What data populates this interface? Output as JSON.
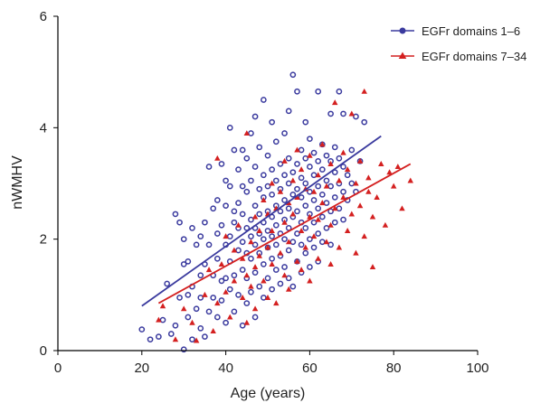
{
  "chart_data": {
    "type": "scatter",
    "title": "",
    "xlabel": "Age (years)",
    "ylabel": "nWMHV",
    "xlim": [
      0,
      100
    ],
    "ylim": [
      0,
      6
    ],
    "xticks": [
      0,
      20,
      40,
      60,
      80,
      100
    ],
    "yticks": [
      0,
      2,
      4,
      6
    ],
    "grid": false,
    "legend_position": "top-right",
    "series": [
      {
        "name": "EGFr domains 1–6",
        "color": "#3a3a9e",
        "marker": "circle",
        "trend": {
          "x": [
            20,
            77
          ],
          "y": [
            0.8,
            3.85
          ]
        },
        "points": [
          [
            20,
            0.38
          ],
          [
            22,
            0.2
          ],
          [
            24,
            0.25
          ],
          [
            25,
            0.55
          ],
          [
            26,
            1.2
          ],
          [
            27,
            0.3
          ],
          [
            28,
            0.45
          ],
          [
            28,
            2.45
          ],
          [
            29,
            0.95
          ],
          [
            29,
            2.3
          ],
          [
            30,
            0.02
          ],
          [
            30,
            1.55
          ],
          [
            30,
            2.0
          ],
          [
            31,
            0.6
          ],
          [
            31,
            1.0
          ],
          [
            31,
            1.6
          ],
          [
            32,
            0.2
          ],
          [
            32,
            1.15
          ],
          [
            32,
            2.2
          ],
          [
            33,
            0.75
          ],
          [
            33,
            1.9
          ],
          [
            34,
            0.4
          ],
          [
            34,
            0.95
          ],
          [
            34,
            1.35
          ],
          [
            34,
            2.05
          ],
          [
            35,
            0.25
          ],
          [
            35,
            1.55
          ],
          [
            35,
            2.3
          ],
          [
            36,
            0.7
          ],
          [
            36,
            1.9
          ],
          [
            36,
            3.3
          ],
          [
            37,
            0.95
          ],
          [
            37,
            1.35
          ],
          [
            37,
            2.55
          ],
          [
            38,
            0.6
          ],
          [
            38,
            1.65
          ],
          [
            38,
            2.1
          ],
          [
            38,
            2.7
          ],
          [
            39,
            0.9
          ],
          [
            39,
            1.25
          ],
          [
            39,
            2.25
          ],
          [
            39,
            3.35
          ],
          [
            40,
            0.5
          ],
          [
            40,
            1.3
          ],
          [
            40,
            1.9
          ],
          [
            40,
            2.6
          ],
          [
            40,
            3.05
          ],
          [
            41,
            1.1
          ],
          [
            41,
            1.6
          ],
          [
            41,
            2.05
          ],
          [
            41,
            2.95
          ],
          [
            41,
            4.0
          ],
          [
            42,
            0.7
          ],
          [
            42,
            1.35
          ],
          [
            42,
            2.3
          ],
          [
            42,
            2.5
          ],
          [
            42,
            3.6
          ],
          [
            43,
            1.0
          ],
          [
            43,
            1.8
          ],
          [
            43,
            2.2
          ],
          [
            43,
            2.65
          ],
          [
            43,
            3.25
          ],
          [
            44,
            0.45
          ],
          [
            44,
            1.45
          ],
          [
            44,
            1.95
          ],
          [
            44,
            2.45
          ],
          [
            44,
            2.95
          ],
          [
            44,
            3.6
          ],
          [
            45,
            0.85
          ],
          [
            45,
            1.3
          ],
          [
            45,
            1.75
          ],
          [
            45,
            2.2
          ],
          [
            45,
            2.85
          ],
          [
            45,
            3.45
          ],
          [
            46,
            1.05
          ],
          [
            46,
            1.65
          ],
          [
            46,
            2.05
          ],
          [
            46,
            2.35
          ],
          [
            46,
            3.05
          ],
          [
            46,
            3.9
          ],
          [
            47,
            0.6
          ],
          [
            47,
            1.4
          ],
          [
            47,
            1.9
          ],
          [
            47,
            2.2
          ],
          [
            47,
            2.6
          ],
          [
            47,
            3.3
          ],
          [
            47,
            4.2
          ],
          [
            48,
            1.15
          ],
          [
            48,
            1.75
          ],
          [
            48,
            2.1
          ],
          [
            48,
            2.45
          ],
          [
            48,
            2.9
          ],
          [
            48,
            3.65
          ],
          [
            49,
            0.95
          ],
          [
            49,
            1.55
          ],
          [
            49,
            2.0
          ],
          [
            49,
            2.3
          ],
          [
            49,
            2.75
          ],
          [
            49,
            3.15
          ],
          [
            49,
            4.5
          ],
          [
            50,
            1.3
          ],
          [
            50,
            1.85
          ],
          [
            50,
            2.15
          ],
          [
            50,
            2.5
          ],
          [
            50,
            2.95
          ],
          [
            50,
            3.5
          ],
          [
            51,
            1.1
          ],
          [
            51,
            1.65
          ],
          [
            51,
            2.05
          ],
          [
            51,
            2.4
          ],
          [
            51,
            2.8
          ],
          [
            51,
            3.25
          ],
          [
            51,
            4.1
          ],
          [
            52,
            1.45
          ],
          [
            52,
            1.9
          ],
          [
            52,
            2.25
          ],
          [
            52,
            2.6
          ],
          [
            52,
            3.05
          ],
          [
            52,
            3.75
          ],
          [
            53,
            1.2
          ],
          [
            53,
            1.7
          ],
          [
            53,
            2.1
          ],
          [
            53,
            2.5
          ],
          [
            53,
            2.9
          ],
          [
            53,
            3.35
          ],
          [
            54,
            1.5
          ],
          [
            54,
            2.0
          ],
          [
            54,
            2.35
          ],
          [
            54,
            2.7
          ],
          [
            54,
            3.15
          ],
          [
            54,
            3.9
          ],
          [
            55,
            1.3
          ],
          [
            55,
            1.8
          ],
          [
            55,
            2.2
          ],
          [
            55,
            2.55
          ],
          [
            55,
            3.0
          ],
          [
            55,
            3.45
          ],
          [
            55,
            4.3
          ],
          [
            56,
            1.15
          ],
          [
            56,
            1.95
          ],
          [
            56,
            2.4
          ],
          [
            56,
            2.8
          ],
          [
            56,
            3.2
          ],
          [
            56,
            4.95
          ],
          [
            57,
            1.6
          ],
          [
            57,
            2.1
          ],
          [
            57,
            2.5
          ],
          [
            57,
            2.9
          ],
          [
            57,
            3.35
          ],
          [
            57,
            4.65
          ],
          [
            58,
            1.4
          ],
          [
            58,
            1.9
          ],
          [
            58,
            2.3
          ],
          [
            58,
            2.75
          ],
          [
            58,
            3.1
          ],
          [
            58,
            3.6
          ],
          [
            59,
            1.75
          ],
          [
            59,
            2.2
          ],
          [
            59,
            2.6
          ],
          [
            59,
            3.0
          ],
          [
            59,
            3.45
          ],
          [
            59,
            4.1
          ],
          [
            60,
            1.5
          ],
          [
            60,
            2.0
          ],
          [
            60,
            2.45
          ],
          [
            60,
            2.85
          ],
          [
            60,
            3.3
          ],
          [
            60,
            3.8
          ],
          [
            61,
            1.85
          ],
          [
            61,
            2.3
          ],
          [
            61,
            2.7
          ],
          [
            61,
            3.15
          ],
          [
            61,
            3.55
          ],
          [
            62,
            1.6
          ],
          [
            62,
            2.1
          ],
          [
            62,
            2.55
          ],
          [
            62,
            2.95
          ],
          [
            62,
            3.4
          ],
          [
            62,
            4.65
          ],
          [
            63,
            1.95
          ],
          [
            63,
            2.4
          ],
          [
            63,
            2.8
          ],
          [
            63,
            3.25
          ],
          [
            63,
            3.7
          ],
          [
            64,
            2.2
          ],
          [
            64,
            2.65
          ],
          [
            64,
            3.05
          ],
          [
            64,
            3.5
          ],
          [
            65,
            1.9
          ],
          [
            65,
            2.5
          ],
          [
            65,
            2.95
          ],
          [
            65,
            3.4
          ],
          [
            65,
            4.25
          ],
          [
            66,
            2.3
          ],
          [
            66,
            2.75
          ],
          [
            66,
            3.2
          ],
          [
            66,
            3.65
          ],
          [
            67,
            2.55
          ],
          [
            67,
            3.0
          ],
          [
            67,
            3.45
          ],
          [
            67,
            4.65
          ],
          [
            68,
            2.35
          ],
          [
            68,
            2.85
          ],
          [
            68,
            3.3
          ],
          [
            68,
            4.25
          ],
          [
            69,
            2.7
          ],
          [
            69,
            3.15
          ],
          [
            70,
            3.0
          ],
          [
            70,
            3.6
          ],
          [
            71,
            2.85
          ],
          [
            71,
            4.2
          ],
          [
            72,
            3.4
          ],
          [
            73,
            4.1
          ]
        ]
      },
      {
        "name": "EGFr domains 7–34",
        "color": "#d42020",
        "marker": "triangle",
        "trend": {
          "x": [
            24,
            84
          ],
          "y": [
            0.85,
            3.35
          ]
        },
        "points": [
          [
            24,
            0.55
          ],
          [
            25,
            0.8
          ],
          [
            28,
            0.2
          ],
          [
            30,
            0.75
          ],
          [
            32,
            0.5
          ],
          [
            33,
            0.18
          ],
          [
            35,
            1.0
          ],
          [
            36,
            1.45
          ],
          [
            37,
            0.35
          ],
          [
            38,
            0.85
          ],
          [
            38,
            3.45
          ],
          [
            39,
            1.55
          ],
          [
            40,
            1.05
          ],
          [
            40,
            2.05
          ],
          [
            41,
            0.6
          ],
          [
            42,
            1.25
          ],
          [
            42,
            1.8
          ],
          [
            43,
            2.25
          ],
          [
            44,
            0.95
          ],
          [
            44,
            1.65
          ],
          [
            45,
            1.35
          ],
          [
            45,
            0.5
          ],
          [
            45,
            3.9
          ],
          [
            46,
            1.15
          ],
          [
            46,
            1.95
          ],
          [
            47,
            0.75
          ],
          [
            47,
            2.4
          ],
          [
            47,
            1.5
          ],
          [
            48,
            1.7
          ],
          [
            48,
            2.15
          ],
          [
            49,
            1.25
          ],
          [
            49,
            2.7
          ],
          [
            50,
            0.95
          ],
          [
            50,
            1.85
          ],
          [
            50,
            2.45
          ],
          [
            51,
            1.55
          ],
          [
            51,
            2.15
          ],
          [
            51,
            3.0
          ],
          [
            52,
            0.85
          ],
          [
            52,
            2.55
          ],
          [
            53,
            1.75
          ],
          [
            53,
            2.85
          ],
          [
            54,
            1.35
          ],
          [
            54,
            2.3
          ],
          [
            54,
            3.4
          ],
          [
            55,
            1.95
          ],
          [
            55,
            2.65
          ],
          [
            55,
            1.1
          ],
          [
            56,
            2.45
          ],
          [
            56,
            3.05
          ],
          [
            57,
            1.6
          ],
          [
            57,
            2.75
          ],
          [
            57,
            3.6
          ],
          [
            58,
            2.15
          ],
          [
            58,
            1.45
          ],
          [
            58,
            3.25
          ],
          [
            59,
            2.9
          ],
          [
            59,
            1.85
          ],
          [
            60,
            2.4
          ],
          [
            60,
            3.5
          ],
          [
            60,
            1.25
          ],
          [
            61,
            2.05
          ],
          [
            61,
            2.85
          ],
          [
            62,
            1.65
          ],
          [
            62,
            3.15
          ],
          [
            62,
            2.35
          ],
          [
            63,
            2.65
          ],
          [
            63,
            3.7
          ],
          [
            64,
            1.95
          ],
          [
            64,
            2.95
          ],
          [
            65,
            2.25
          ],
          [
            65,
            3.35
          ],
          [
            65,
            1.55
          ],
          [
            66,
            2.55
          ],
          [
            66,
            4.45
          ],
          [
            67,
            3.05
          ],
          [
            67,
            1.85
          ],
          [
            68,
            2.75
          ],
          [
            68,
            3.55
          ],
          [
            69,
            2.15
          ],
          [
            69,
            3.25
          ],
          [
            70,
            2.45
          ],
          [
            70,
            4.25
          ],
          [
            71,
            3.0
          ],
          [
            71,
            1.75
          ],
          [
            72,
            2.6
          ],
          [
            72,
            3.4
          ],
          [
            73,
            2.05
          ],
          [
            73,
            4.65
          ],
          [
            74,
            2.85
          ],
          [
            74,
            3.1
          ],
          [
            75,
            2.4
          ],
          [
            75,
            1.5
          ],
          [
            76,
            2.75
          ],
          [
            77,
            3.35
          ],
          [
            78,
            2.25
          ],
          [
            79,
            3.2
          ],
          [
            80,
            2.95
          ],
          [
            81,
            3.3
          ],
          [
            82,
            2.55
          ],
          [
            84,
            3.05
          ]
        ]
      }
    ]
  }
}
